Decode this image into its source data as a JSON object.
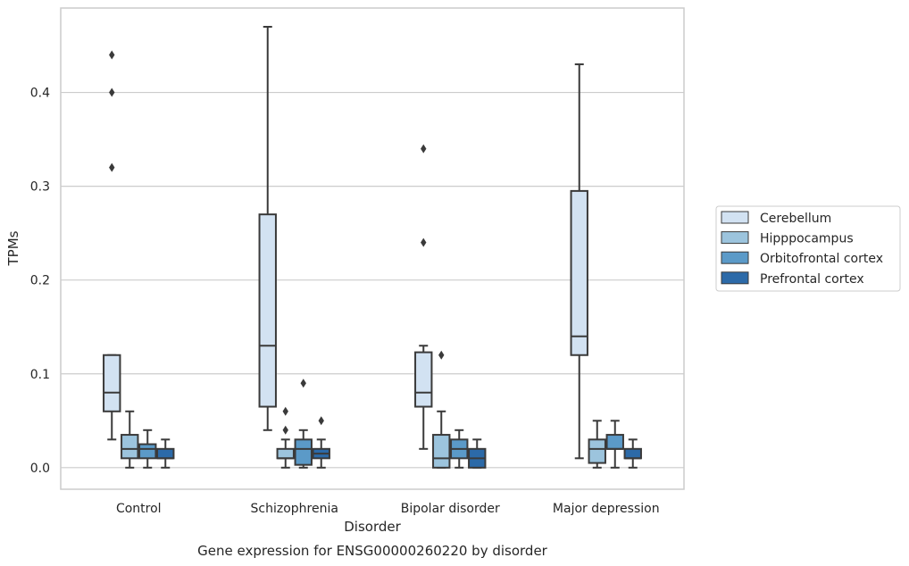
{
  "chart_data": {
    "type": "box",
    "title": "Gene expression for ENSG00000260220 by disorder",
    "xlabel": "Disorder",
    "ylabel": "TPMs",
    "ylim": [
      -0.023,
      0.49
    ],
    "yticks": [
      0.0,
      0.1,
      0.2,
      0.3,
      0.4
    ],
    "ytick_labels": [
      "0.0",
      "0.1",
      "0.2",
      "0.3",
      "0.4"
    ],
    "grid": "horizontal",
    "legend_position": "right",
    "categories": [
      "Control",
      "Schizophrenia",
      "Bipolar disorder",
      "Major depression"
    ],
    "series": [
      {
        "name": "Cerebellum",
        "color": "#d2e2f2",
        "boxes": [
          {
            "whisker_low": 0.03,
            "q1": 0.06,
            "median": 0.08,
            "q3": 0.12,
            "whisker_high": 0.12,
            "outliers": [
              0.32,
              0.4,
              0.44
            ]
          },
          {
            "whisker_low": 0.04,
            "q1": 0.065,
            "median": 0.13,
            "q3": 0.27,
            "whisker_high": 0.47,
            "outliers": []
          },
          {
            "whisker_low": 0.02,
            "q1": 0.065,
            "median": 0.08,
            "q3": 0.123,
            "whisker_high": 0.13,
            "outliers": [
              0.24,
              0.34
            ]
          },
          {
            "whisker_low": 0.01,
            "q1": 0.12,
            "median": 0.14,
            "q3": 0.295,
            "whisker_high": 0.43,
            "outliers": []
          }
        ]
      },
      {
        "name": "Hipppocampus",
        "color": "#9cc4dd",
        "boxes": [
          {
            "whisker_low": 0.0,
            "q1": 0.01,
            "median": 0.02,
            "q3": 0.035,
            "whisker_high": 0.06,
            "outliers": []
          },
          {
            "whisker_low": 0.0,
            "q1": 0.01,
            "median": 0.01,
            "q3": 0.02,
            "whisker_high": 0.03,
            "outliers": [
              0.04,
              0.06
            ]
          },
          {
            "whisker_low": 0.0,
            "q1": 0.0,
            "median": 0.01,
            "q3": 0.035,
            "whisker_high": 0.06,
            "outliers": [
              0.12
            ]
          },
          {
            "whisker_low": 0.0,
            "q1": 0.005,
            "median": 0.02,
            "q3": 0.03,
            "whisker_high": 0.05,
            "outliers": []
          }
        ]
      },
      {
        "name": "Orbitofrontal cortex",
        "color": "#5b9ac8",
        "boxes": [
          {
            "whisker_low": 0.0,
            "q1": 0.01,
            "median": 0.02,
            "q3": 0.025,
            "whisker_high": 0.04,
            "outliers": []
          },
          {
            "whisker_low": 0.0,
            "q1": 0.003,
            "median": 0.02,
            "q3": 0.03,
            "whisker_high": 0.04,
            "outliers": [
              0.09
            ]
          },
          {
            "whisker_low": 0.0,
            "q1": 0.01,
            "median": 0.02,
            "q3": 0.03,
            "whisker_high": 0.04,
            "outliers": []
          },
          {
            "whisker_low": 0.0,
            "q1": 0.02,
            "median": 0.02,
            "q3": 0.035,
            "whisker_high": 0.05,
            "outliers": []
          }
        ]
      },
      {
        "name": "Prefrontal cortex",
        "color": "#2c6aa8",
        "boxes": [
          {
            "whisker_low": 0.0,
            "q1": 0.01,
            "median": 0.01,
            "q3": 0.02,
            "whisker_high": 0.03,
            "outliers": []
          },
          {
            "whisker_low": 0.0,
            "q1": 0.01,
            "median": 0.015,
            "q3": 0.02,
            "whisker_high": 0.03,
            "outliers": [
              0.05
            ]
          },
          {
            "whisker_low": 0.0,
            "q1": 0.0,
            "median": 0.01,
            "q3": 0.02,
            "whisker_high": 0.03,
            "outliers": []
          },
          {
            "whisker_low": 0.0,
            "q1": 0.01,
            "median": 0.01,
            "q3": 0.02,
            "whisker_high": 0.03,
            "outliers": []
          }
        ]
      }
    ]
  }
}
